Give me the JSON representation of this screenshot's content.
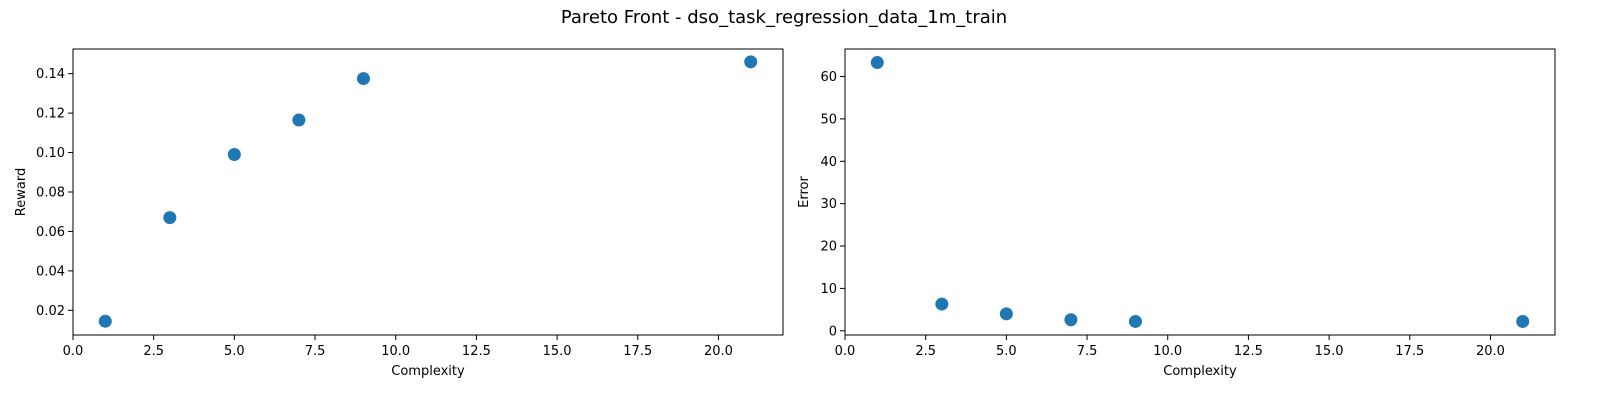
{
  "figure": {
    "title": "Pareto Front - dso_task_regression_data_1m_train"
  },
  "chart_data": [
    {
      "type": "scatter",
      "xlabel": "Complexity",
      "ylabel": "Reward",
      "xlim": [
        0,
        22
      ],
      "ylim": [
        0.0075,
        0.1525
      ],
      "xticks": [
        0,
        2.5,
        5,
        7.5,
        10,
        12.5,
        15,
        17.5,
        20
      ],
      "xtick_labels": [
        "0.0",
        "2.5",
        "5.0",
        "7.5",
        "10.0",
        "12.5",
        "15.0",
        "17.5",
        "20.0"
      ],
      "yticks": [
        0.02,
        0.04,
        0.06,
        0.08,
        0.1,
        0.12,
        0.14
      ],
      "ytick_labels": [
        "0.02",
        "0.04",
        "0.06",
        "0.08",
        "0.10",
        "0.12",
        "0.14"
      ],
      "grid": false,
      "color": "#1f77b4",
      "x": [
        1,
        3,
        5,
        7,
        9,
        21
      ],
      "y": [
        0.0145,
        0.067,
        0.099,
        0.1165,
        0.1375,
        0.146
      ]
    },
    {
      "type": "scatter",
      "xlabel": "Complexity",
      "ylabel": "Error",
      "xlim": [
        0,
        22
      ],
      "ylim": [
        -1,
        66.5
      ],
      "xticks": [
        0,
        2.5,
        5,
        7.5,
        10,
        12.5,
        15,
        17.5,
        20
      ],
      "xtick_labels": [
        "0.0",
        "2.5",
        "5.0",
        "7.5",
        "10.0",
        "12.5",
        "15.0",
        "17.5",
        "20.0"
      ],
      "yticks": [
        0,
        10,
        20,
        30,
        40,
        50,
        60
      ],
      "ytick_labels": [
        "0",
        "10",
        "20",
        "30",
        "40",
        "50",
        "60"
      ],
      "grid": false,
      "color": "#1f77b4",
      "x": [
        1,
        3,
        5,
        7,
        9,
        21
      ],
      "y": [
        63.3,
        6.3,
        4.0,
        2.6,
        2.2,
        2.2
      ]
    }
  ]
}
